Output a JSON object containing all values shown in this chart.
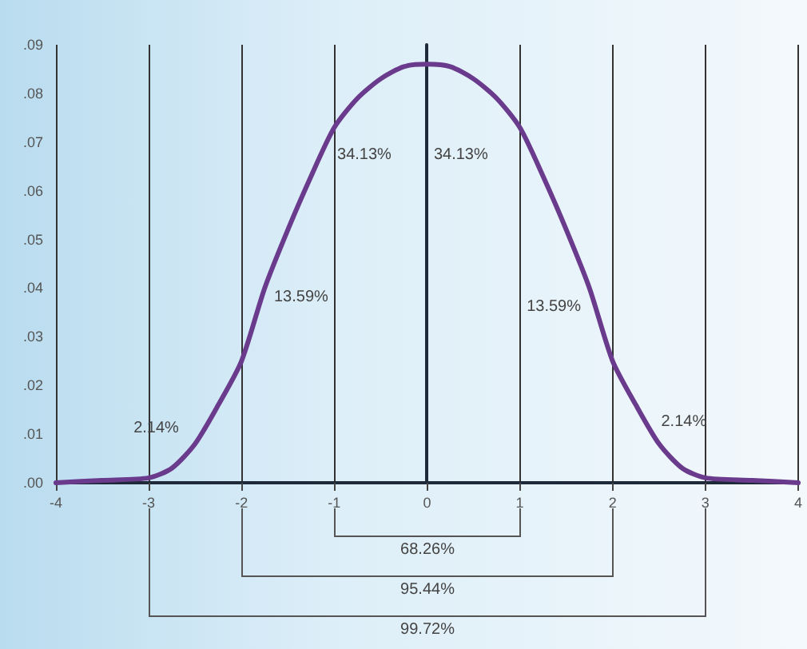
{
  "chart_data": {
    "type": "line",
    "x": [
      -4,
      -3.5,
      -3,
      -2.75,
      -2.5,
      -2.25,
      -2,
      -1.75,
      -1.5,
      -1.25,
      -1,
      -0.75,
      -0.5,
      -0.25,
      0,
      0.25,
      0.5,
      0.75,
      1,
      1.25,
      1.5,
      1.75,
      2,
      2.25,
      2.5,
      2.75,
      3,
      3.5,
      4
    ],
    "series": [
      {
        "color": "#6a3a8c",
        "values": [
          0.0,
          0.0005,
          0.001,
          0.003,
          0.008,
          0.016,
          0.025,
          0.04,
          0.052,
          0.063,
          0.073,
          0.079,
          0.083,
          0.0855,
          0.086,
          0.0855,
          0.083,
          0.079,
          0.073,
          0.063,
          0.052,
          0.04,
          0.025,
          0.016,
          0.008,
          0.003,
          0.001,
          0.0005,
          0.0
        ]
      }
    ],
    "xlim": [
      -4,
      4
    ],
    "xticks": [
      -4,
      -3,
      -2,
      -1,
      0,
      1,
      2,
      3,
      4
    ],
    "ylim": [
      0,
      0.09
    ],
    "yticks": [
      {
        "value": 0,
        "label": ".00"
      },
      {
        "value": 0.01,
        "label": ".01"
      },
      {
        "value": 0.02,
        "label": ".02"
      },
      {
        "value": 0.03,
        "label": ".03"
      },
      {
        "value": 0.04,
        "label": ".04"
      },
      {
        "value": 0.05,
        "label": ".05"
      },
      {
        "value": 0.06,
        "label": ".06"
      },
      {
        "value": 0.07,
        "label": ".07"
      },
      {
        "value": 0.08,
        "label": ".08"
      },
      {
        "value": 0.09,
        "label": ".09"
      }
    ],
    "grid": "x",
    "marker": "none",
    "line_style": "solid",
    "annotations": [
      "2.14%",
      "13.59%",
      "34.13%",
      "34.13%",
      "13.59%",
      "2.14%",
      "68.26%",
      "95.44%",
      "99.72%"
    ]
  }
}
